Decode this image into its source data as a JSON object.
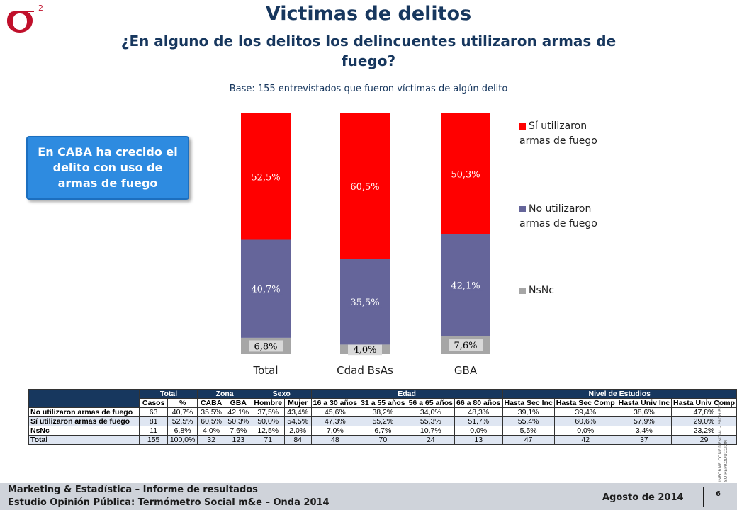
{
  "header": {
    "title": "Victimas de delitos",
    "subtitle": "¿En alguno de los delitos los delincuentes utilizaron armas de fuego?",
    "base": "Base: 155 entrevistados que fueron víctimas de algún delito",
    "logo_text": "σ",
    "logo_sup": "2"
  },
  "callout": {
    "text": "En CABA ha crecido el delito con uso de armas de fuego",
    "color": "#2e8be0"
  },
  "chart_data": {
    "type": "bar",
    "stacked": true,
    "categories": [
      "Total",
      "Cdad BsAs",
      "GBA"
    ],
    "series": [
      {
        "name": "NsNc",
        "values": [
          6.8,
          4.0,
          7.6
        ],
        "labels": [
          "6,8%",
          "4,0%",
          "7,6%"
        ],
        "color": "#a6a6a6"
      },
      {
        "name": "No utilizaron armas de fuego",
        "values": [
          40.7,
          35.5,
          42.1
        ],
        "labels": [
          "40,7%",
          "35,5%",
          "42,1%"
        ],
        "color": "#65659a"
      },
      {
        "name": "Sí utilizaron armas de fuego",
        "values": [
          52.5,
          60.5,
          50.3
        ],
        "labels": [
          "52,5%",
          "60,5%",
          "50,3%"
        ],
        "color": "#ff0000"
      }
    ],
    "ylim": [
      0,
      100
    ],
    "legend_position": "right",
    "grid": false
  },
  "legend": [
    {
      "label": "Sí utilizaron armas de fuego",
      "color": "#ff0000"
    },
    {
      "label": "No utilizaron armas de fuego",
      "color": "#65659a"
    },
    {
      "label": "NsNc",
      "color": "#a6a6a6"
    }
  ],
  "table": {
    "groups": [
      "Total",
      "Zona",
      "Sexo",
      "Edad",
      "Nivel de Estudios"
    ],
    "columns": [
      "Casos",
      "%",
      "CABA",
      "GBA",
      "Hombre",
      "Mujer",
      "16 a 30 años",
      "31 a 55 años",
      "56 a 65 años",
      "66 a 80 años",
      "Hasta Sec Inc",
      "Hasta Sec Comp",
      "Hasta Univ Inc",
      "Hasta Univ Comp"
    ],
    "rows": [
      {
        "label": "No utilizaron armas de fuego",
        "cells": [
          "63",
          "40,7%",
          "35,5%",
          "42,1%",
          "37,5%",
          "43,4%",
          "45,6%",
          "38,2%",
          "34,0%",
          "48,3%",
          "39,1%",
          "39,4%",
          "38,6%",
          "47,8%"
        ]
      },
      {
        "label": "Sí utilizaron armas de fuego",
        "cells": [
          "81",
          "52,5%",
          "60,5%",
          "50,3%",
          "50,0%",
          "54,5%",
          "47,3%",
          "55,2%",
          "55,3%",
          "51,7%",
          "55,4%",
          "60,6%",
          "57,9%",
          "29,0%"
        ]
      },
      {
        "label": "NsNc",
        "cells": [
          "11",
          "6,8%",
          "4,0%",
          "7,6%",
          "12,5%",
          "2,0%",
          "7,0%",
          "6,7%",
          "10,7%",
          "0,0%",
          "5,5%",
          "0,0%",
          "3,4%",
          "23,2%"
        ]
      },
      {
        "label": "Total",
        "cells": [
          "155",
          "100,0%",
          "32",
          "123",
          "71",
          "84",
          "48",
          "70",
          "24",
          "13",
          "47",
          "42",
          "37",
          "29"
        ]
      }
    ]
  },
  "side_note": "INFORME CONFIDENCIAL - PROHIBIDA SU REPRODUCCION",
  "footer": {
    "line1": "Marketing & Estadística – Informe de resultados",
    "line2": "Estudio Opinión Pública: Termómetro Social m&e – Onda 2014",
    "date": "Agosto de 2014",
    "page": "6"
  }
}
